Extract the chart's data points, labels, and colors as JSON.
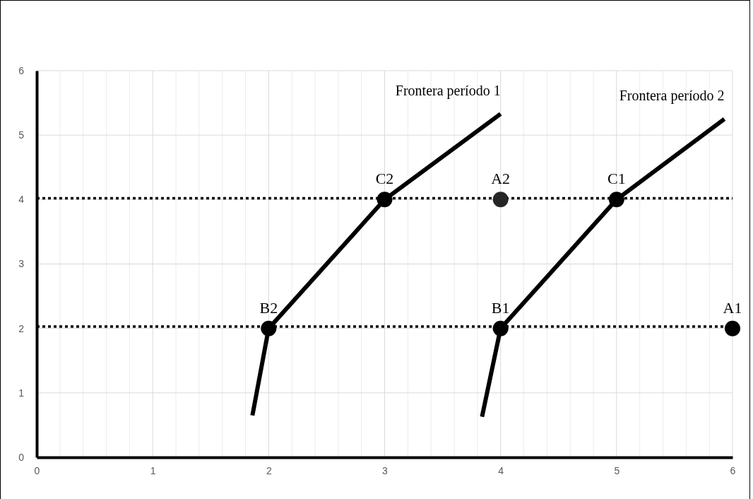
{
  "chart_data": {
    "type": "line",
    "xlim": [
      0,
      6
    ],
    "ylim": [
      0,
      6
    ],
    "xticks": [
      0,
      {
        "value": 0.2,
        "label": null
      },
      {
        "value": 0.4,
        "label": null
      },
      {
        "value": 0.6,
        "label": null
      },
      {
        "value": 0.8,
        "label": null
      },
      1,
      {
        "value": 1.2,
        "label": null
      },
      {
        "value": 1.4,
        "label": null
      },
      {
        "value": 1.6,
        "label": null
      },
      {
        "value": 1.8,
        "label": null
      },
      2,
      {
        "value": 2.2,
        "label": null
      },
      {
        "value": 2.4,
        "label": null
      },
      {
        "value": 2.6,
        "label": null
      },
      {
        "value": 2.8,
        "label": null
      },
      3,
      {
        "value": 3.2,
        "label": null
      },
      {
        "value": 3.4,
        "label": null
      },
      {
        "value": 3.6,
        "label": null
      },
      {
        "value": 3.8,
        "label": null
      },
      4,
      {
        "value": 4.2,
        "label": null
      },
      {
        "value": 4.4,
        "label": null
      },
      {
        "value": 4.6,
        "label": null
      },
      {
        "value": 4.8,
        "label": null
      },
      5,
      {
        "value": 5.2,
        "label": null
      },
      {
        "value": 5.4,
        "label": null
      },
      {
        "value": 5.6,
        "label": null
      },
      {
        "value": 5.8,
        "label": null
      },
      6
    ],
    "yticks": [
      0,
      1,
      2,
      3,
      4,
      5,
      6
    ],
    "grid": true,
    "series": [
      {
        "name": "Frontera período 1",
        "color": "#000000",
        "x": [
          1.86,
          2,
          3,
          4
        ],
        "values": [
          0.65,
          2,
          4,
          5.33
        ]
      },
      {
        "name": "Frontera período 2",
        "color": "#000000",
        "x": [
          3.84,
          4,
          5,
          5.93
        ],
        "values": [
          0.63,
          2,
          4,
          5.25
        ]
      },
      {
        "type": "scatter",
        "marker": "circle",
        "x": [
          6,
          4,
          4,
          2,
          5,
          3
        ],
        "values": [
          2,
          4,
          2,
          2,
          4,
          4
        ],
        "colors": [
          "#000000",
          "#262626",
          "#000000",
          "#000000",
          "#000000",
          "#000000"
        ]
      }
    ],
    "ref_lines": [
      {
        "axis": "y",
        "value": 2.03,
        "line_style": "dotted",
        "color": "#000000"
      },
      {
        "axis": "y",
        "value": 4.02,
        "line_style": "dotted",
        "color": "#000000"
      }
    ],
    "annotations": [
      {
        "text": "A1",
        "x": 6,
        "y": 2
      },
      {
        "text": "A2",
        "x": 4,
        "y": 4
      },
      {
        "text": "B1",
        "x": 4,
        "y": 2
      },
      {
        "text": "B2",
        "x": 2,
        "y": 2
      },
      {
        "text": "C1",
        "x": 5,
        "y": 4
      },
      {
        "text": "C2",
        "x": 3,
        "y": 4
      }
    ]
  }
}
